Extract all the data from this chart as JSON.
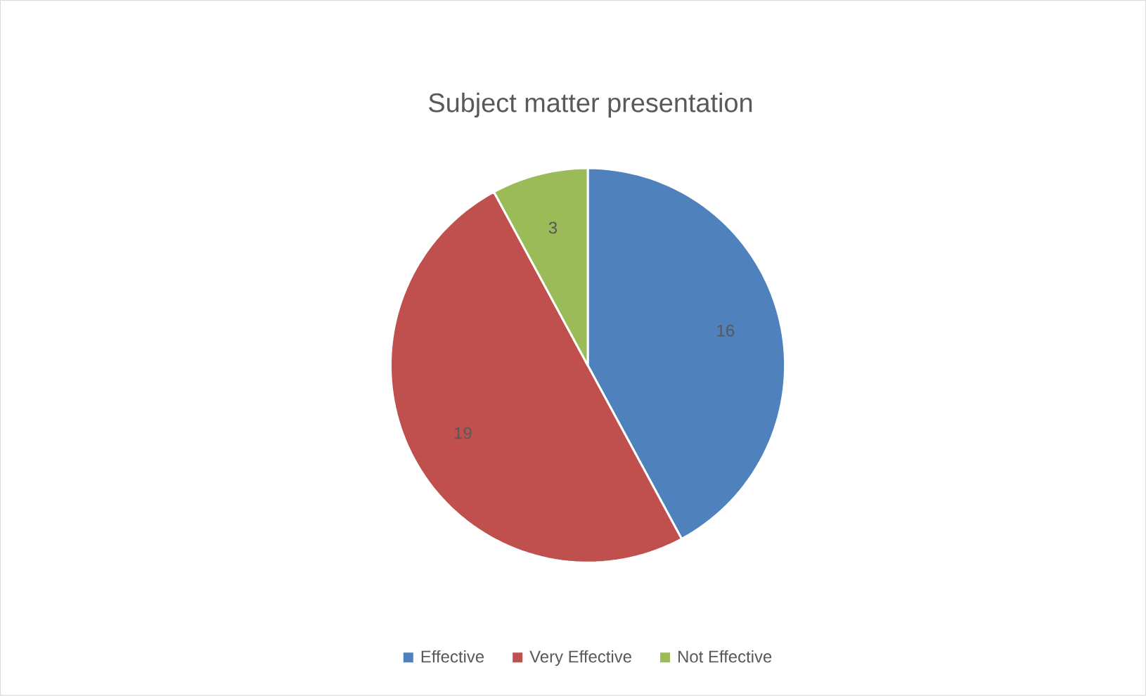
{
  "chart_data": {
    "type": "pie",
    "title": "Subject matter presentation",
    "categories": [
      "Effective",
      "Very Effective",
      "Not Effective"
    ],
    "values": [
      16,
      19,
      3
    ],
    "colors": [
      "#4f81bd",
      "#c0504d",
      "#9bbb59"
    ],
    "data_labels": true,
    "legend": "bottom"
  }
}
